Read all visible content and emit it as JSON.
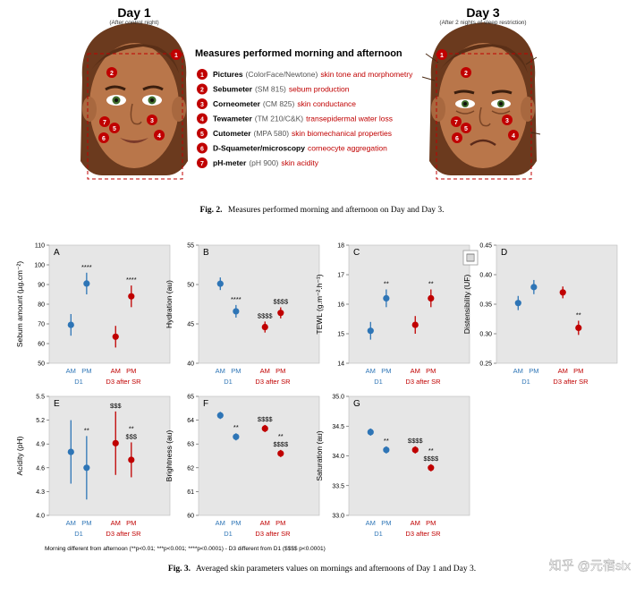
{
  "fig2": {
    "day1_title": "Day 1",
    "day1_subtitle": "(After control night)",
    "day3_title": "Day 3",
    "day3_subtitle": "(After 2 nights of sleep restriction)",
    "heading": "Measures performed morning and afternoon",
    "measures": [
      {
        "num": "1",
        "name": "Pictures",
        "device": "(ColorFace/Newtone)",
        "desc": "skin tone and morphometry"
      },
      {
        "num": "2",
        "name": "Sebumeter",
        "device": "(SM 815)",
        "desc": "sebum production"
      },
      {
        "num": "3",
        "name": "Corneometer",
        "device": "(CM 825)",
        "desc": "skin conductance"
      },
      {
        "num": "4",
        "name": "Tewameter",
        "device": "(TM 210/C&K)",
        "desc": "transepidermal water loss"
      },
      {
        "num": "5",
        "name": "Cutometer",
        "device": "(MPA 580)",
        "desc": "skin biomechanical properties"
      },
      {
        "num": "6",
        "name": "D-Squameter/microscopy",
        "device": "",
        "desc": "corneocyte aggregation"
      },
      {
        "num": "7",
        "name": "pH-meter",
        "device": "(pH 900)",
        "desc": "skin acidity"
      }
    ],
    "caption_label": "Fig. 2.",
    "caption_text": "Measures performed morning and afternoon on Day and Day 3."
  },
  "fig3": {
    "footnote": "Morning different from afternoon (**p<0.01; ***p<0.001; ****p<0.0001) - D3 different from D1 ($$$$ p<0.0001)",
    "caption_label": "Fig. 3.",
    "caption_text": "Averaged skin parameters values on mornings and afternoons of Day 1 and Day 3.",
    "watermark": "知乎 @元宿six",
    "colors": {
      "d1": "#2e75b6",
      "d3": "#c00000",
      "panel_bg": "#e6e6e6"
    }
  },
  "chart_data": [
    {
      "type": "scatter",
      "panel": "A",
      "ylabel": "Sebum amount (µg.cm⁻²)",
      "ylim": [
        50,
        110
      ],
      "yticks": [
        50,
        60,
        70,
        80,
        90,
        100,
        110
      ],
      "categories": [
        "AM",
        "PM",
        "AM",
        "PM"
      ],
      "groups": [
        "D1",
        "D3 after SR"
      ],
      "values": [
        69.5,
        90.5,
        63.5,
        84
      ],
      "err": [
        5.5,
        5.5,
        5.5,
        5.5
      ],
      "annotations": [
        {
          "i": 1,
          "text": "****"
        },
        {
          "i": 3,
          "text": "****"
        }
      ]
    },
    {
      "type": "scatter",
      "panel": "B",
      "ylabel": "Hydration (au)",
      "ylim": [
        40,
        55
      ],
      "yticks": [
        40,
        45,
        50,
        55
      ],
      "categories": [
        "AM",
        "PM",
        "AM",
        "PM"
      ],
      "groups": [
        "D1",
        "D3 after SR"
      ],
      "values": [
        50.1,
        46.6,
        44.6,
        46.4
      ],
      "err": [
        0.8,
        0.8,
        0.7,
        0.7
      ],
      "annotations": [
        {
          "i": 1,
          "text": "****"
        },
        {
          "i": 2,
          "text": "$$$$"
        },
        {
          "i": 3,
          "text": "$$$$"
        }
      ]
    },
    {
      "type": "scatter",
      "panel": "C",
      "ylabel": "TEWL (g.m⁻².h⁻¹)",
      "ylim": [
        14,
        18
      ],
      "yticks": [
        14,
        15,
        16,
        17,
        18
      ],
      "categories": [
        "AM",
        "PM",
        "AM",
        "PM"
      ],
      "groups": [
        "D1",
        "D3 after SR"
      ],
      "values": [
        15.1,
        16.2,
        15.3,
        16.2
      ],
      "err": [
        0.3,
        0.3,
        0.3,
        0.3
      ],
      "annotations": [
        {
          "i": 1,
          "text": "**"
        },
        {
          "i": 3,
          "text": "**"
        }
      ]
    },
    {
      "type": "scatter",
      "panel": "D",
      "ylabel": "Distensibility (UF)",
      "ylim": [
        0.25,
        0.45
      ],
      "yticks": [
        0.25,
        0.3,
        0.35,
        0.4,
        0.45
      ],
      "categories": [
        "AM",
        "PM",
        "AM",
        "PM"
      ],
      "groups": [
        "D1",
        "D3 after SR"
      ],
      "values": [
        0.352,
        0.379,
        0.37,
        0.31
      ],
      "err": [
        0.012,
        0.012,
        0.01,
        0.012
      ],
      "annotations": [
        {
          "i": 3,
          "text": "**"
        }
      ]
    },
    {
      "type": "scatter",
      "panel": "E",
      "ylabel": "Acidity (pH)",
      "ylim": [
        4.0,
        5.5
      ],
      "yticks": [
        4.0,
        4.3,
        4.6,
        4.9,
        5.2,
        5.5
      ],
      "categories": [
        "AM",
        "PM",
        "AM",
        "PM"
      ],
      "groups": [
        "D1",
        "D3 after SR"
      ],
      "values": [
        4.8,
        4.6,
        4.91,
        4.7
      ],
      "err": [
        0.4,
        0.4,
        0.4,
        0.22
      ],
      "annotations": [
        {
          "i": 1,
          "text": "**"
        },
        {
          "i": 2,
          "text": "$$$"
        },
        {
          "i": 3,
          "text": "$$$"
        },
        {
          "i": 3,
          "text": "**"
        }
      ]
    },
    {
      "type": "scatter",
      "panel": "F",
      "ylabel": "Brightness (au)",
      "ylim": [
        60,
        65
      ],
      "yticks": [
        60,
        61,
        62,
        63,
        64,
        65
      ],
      "categories": [
        "AM",
        "PM",
        "AM",
        "PM"
      ],
      "groups": [
        "D1",
        "D3 after SR"
      ],
      "values": [
        64.2,
        63.3,
        63.65,
        62.6
      ],
      "err": [
        0.15,
        0.15,
        0.15,
        0.15
      ],
      "annotations": [
        {
          "i": 1,
          "text": "**"
        },
        {
          "i": 2,
          "text": "$$$$"
        },
        {
          "i": 3,
          "text": "$$$$"
        },
        {
          "i": 3,
          "text": "**"
        }
      ]
    },
    {
      "type": "scatter",
      "panel": "G",
      "ylabel": "Saturation (au)",
      "ylim": [
        33.0,
        35.0
      ],
      "yticks": [
        33.0,
        33.5,
        34.0,
        34.5,
        35.0
      ],
      "categories": [
        "AM",
        "PM",
        "AM",
        "PM"
      ],
      "groups": [
        "D1",
        "D3 after SR"
      ],
      "values": [
        34.4,
        34.1,
        34.1,
        33.8
      ],
      "err": [
        0.06,
        0.06,
        0.06,
        0.06
      ],
      "annotations": [
        {
          "i": 1,
          "text": "**"
        },
        {
          "i": 2,
          "text": "$$$$"
        },
        {
          "i": 3,
          "text": "$$$$"
        },
        {
          "i": 3,
          "text": "**"
        }
      ]
    }
  ]
}
